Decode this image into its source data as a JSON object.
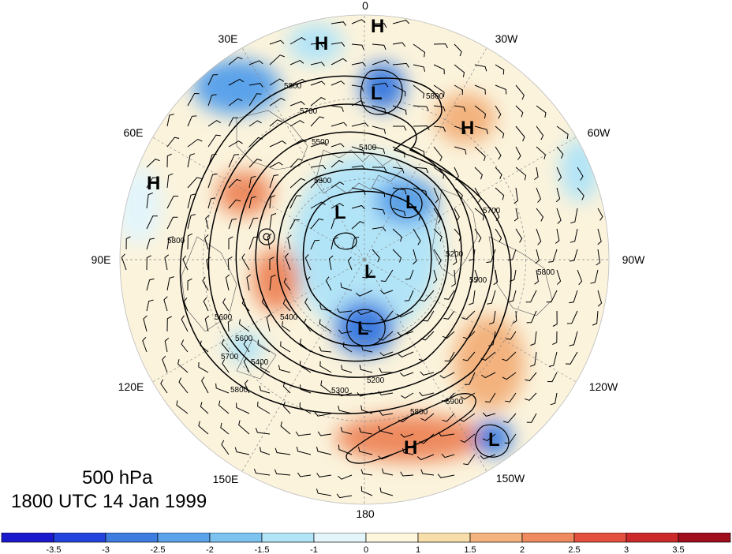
{
  "caption": {
    "level": "500 hPa",
    "time": "1800 UTC 14 Jan 1999"
  },
  "longitude_labels": [
    {
      "text": "0",
      "lon": 0
    },
    {
      "text": "30W",
      "lon": -30
    },
    {
      "text": "60W",
      "lon": -60
    },
    {
      "text": "90W",
      "lon": -90
    },
    {
      "text": "120W",
      "lon": -120
    },
    {
      "text": "150W",
      "lon": -150
    },
    {
      "text": "180",
      "lon": 180
    },
    {
      "text": "150E",
      "lon": 150
    },
    {
      "text": "120E",
      "lon": 120
    },
    {
      "text": "90E",
      "lon": 90
    },
    {
      "text": "60E",
      "lon": 60
    },
    {
      "text": "30E",
      "lon": 30
    }
  ],
  "pressure_centers": [
    {
      "type": "H",
      "name": "high-west-europe"
    },
    {
      "type": "H",
      "name": "high-north-atlantic"
    },
    {
      "type": "H",
      "name": "high-mid-atlantic"
    },
    {
      "type": "H",
      "name": "high-central-asia"
    },
    {
      "type": "H",
      "name": "high-north-pacific"
    },
    {
      "type": "L",
      "name": "low-scandinavia"
    },
    {
      "type": "L",
      "name": "low-greenland"
    },
    {
      "type": "L",
      "name": "low-siberia"
    },
    {
      "type": "L",
      "name": "low-arctic"
    },
    {
      "type": "L",
      "name": "low-hudson"
    },
    {
      "type": "L",
      "name": "low-east-pacific"
    }
  ],
  "contour_labels": [
    "5800",
    "5700",
    "5800",
    "5500",
    "5400",
    "5300",
    "5700",
    "5800",
    "5600",
    "5200",
    "5500",
    "5800",
    "5300",
    "5200",
    "5800",
    "5900",
    "5700",
    "5600",
    "5400",
    "5800",
    "5400"
  ],
  "colorbar": {
    "ticks": [
      "-3.5",
      "-3",
      "-2.5",
      "-2",
      "-1.5",
      "-1",
      "0",
      "1",
      "1.5",
      "2",
      "2.5",
      "3",
      "3.5"
    ],
    "colors": [
      "#1a1acc",
      "#2244dd",
      "#3d7de0",
      "#5aa2ea",
      "#7dc3f0",
      "#b2e4f7",
      "#e3f5fb",
      "#fdf6dd",
      "#f7ddaa",
      "#f3b27e",
      "#ee8a5e",
      "#e4503e",
      "#cc2a2a",
      "#a00f1e"
    ]
  },
  "colors": {
    "ocean_base": "#f6f2e4",
    "contour": "#000000",
    "coast": "#555555"
  }
}
